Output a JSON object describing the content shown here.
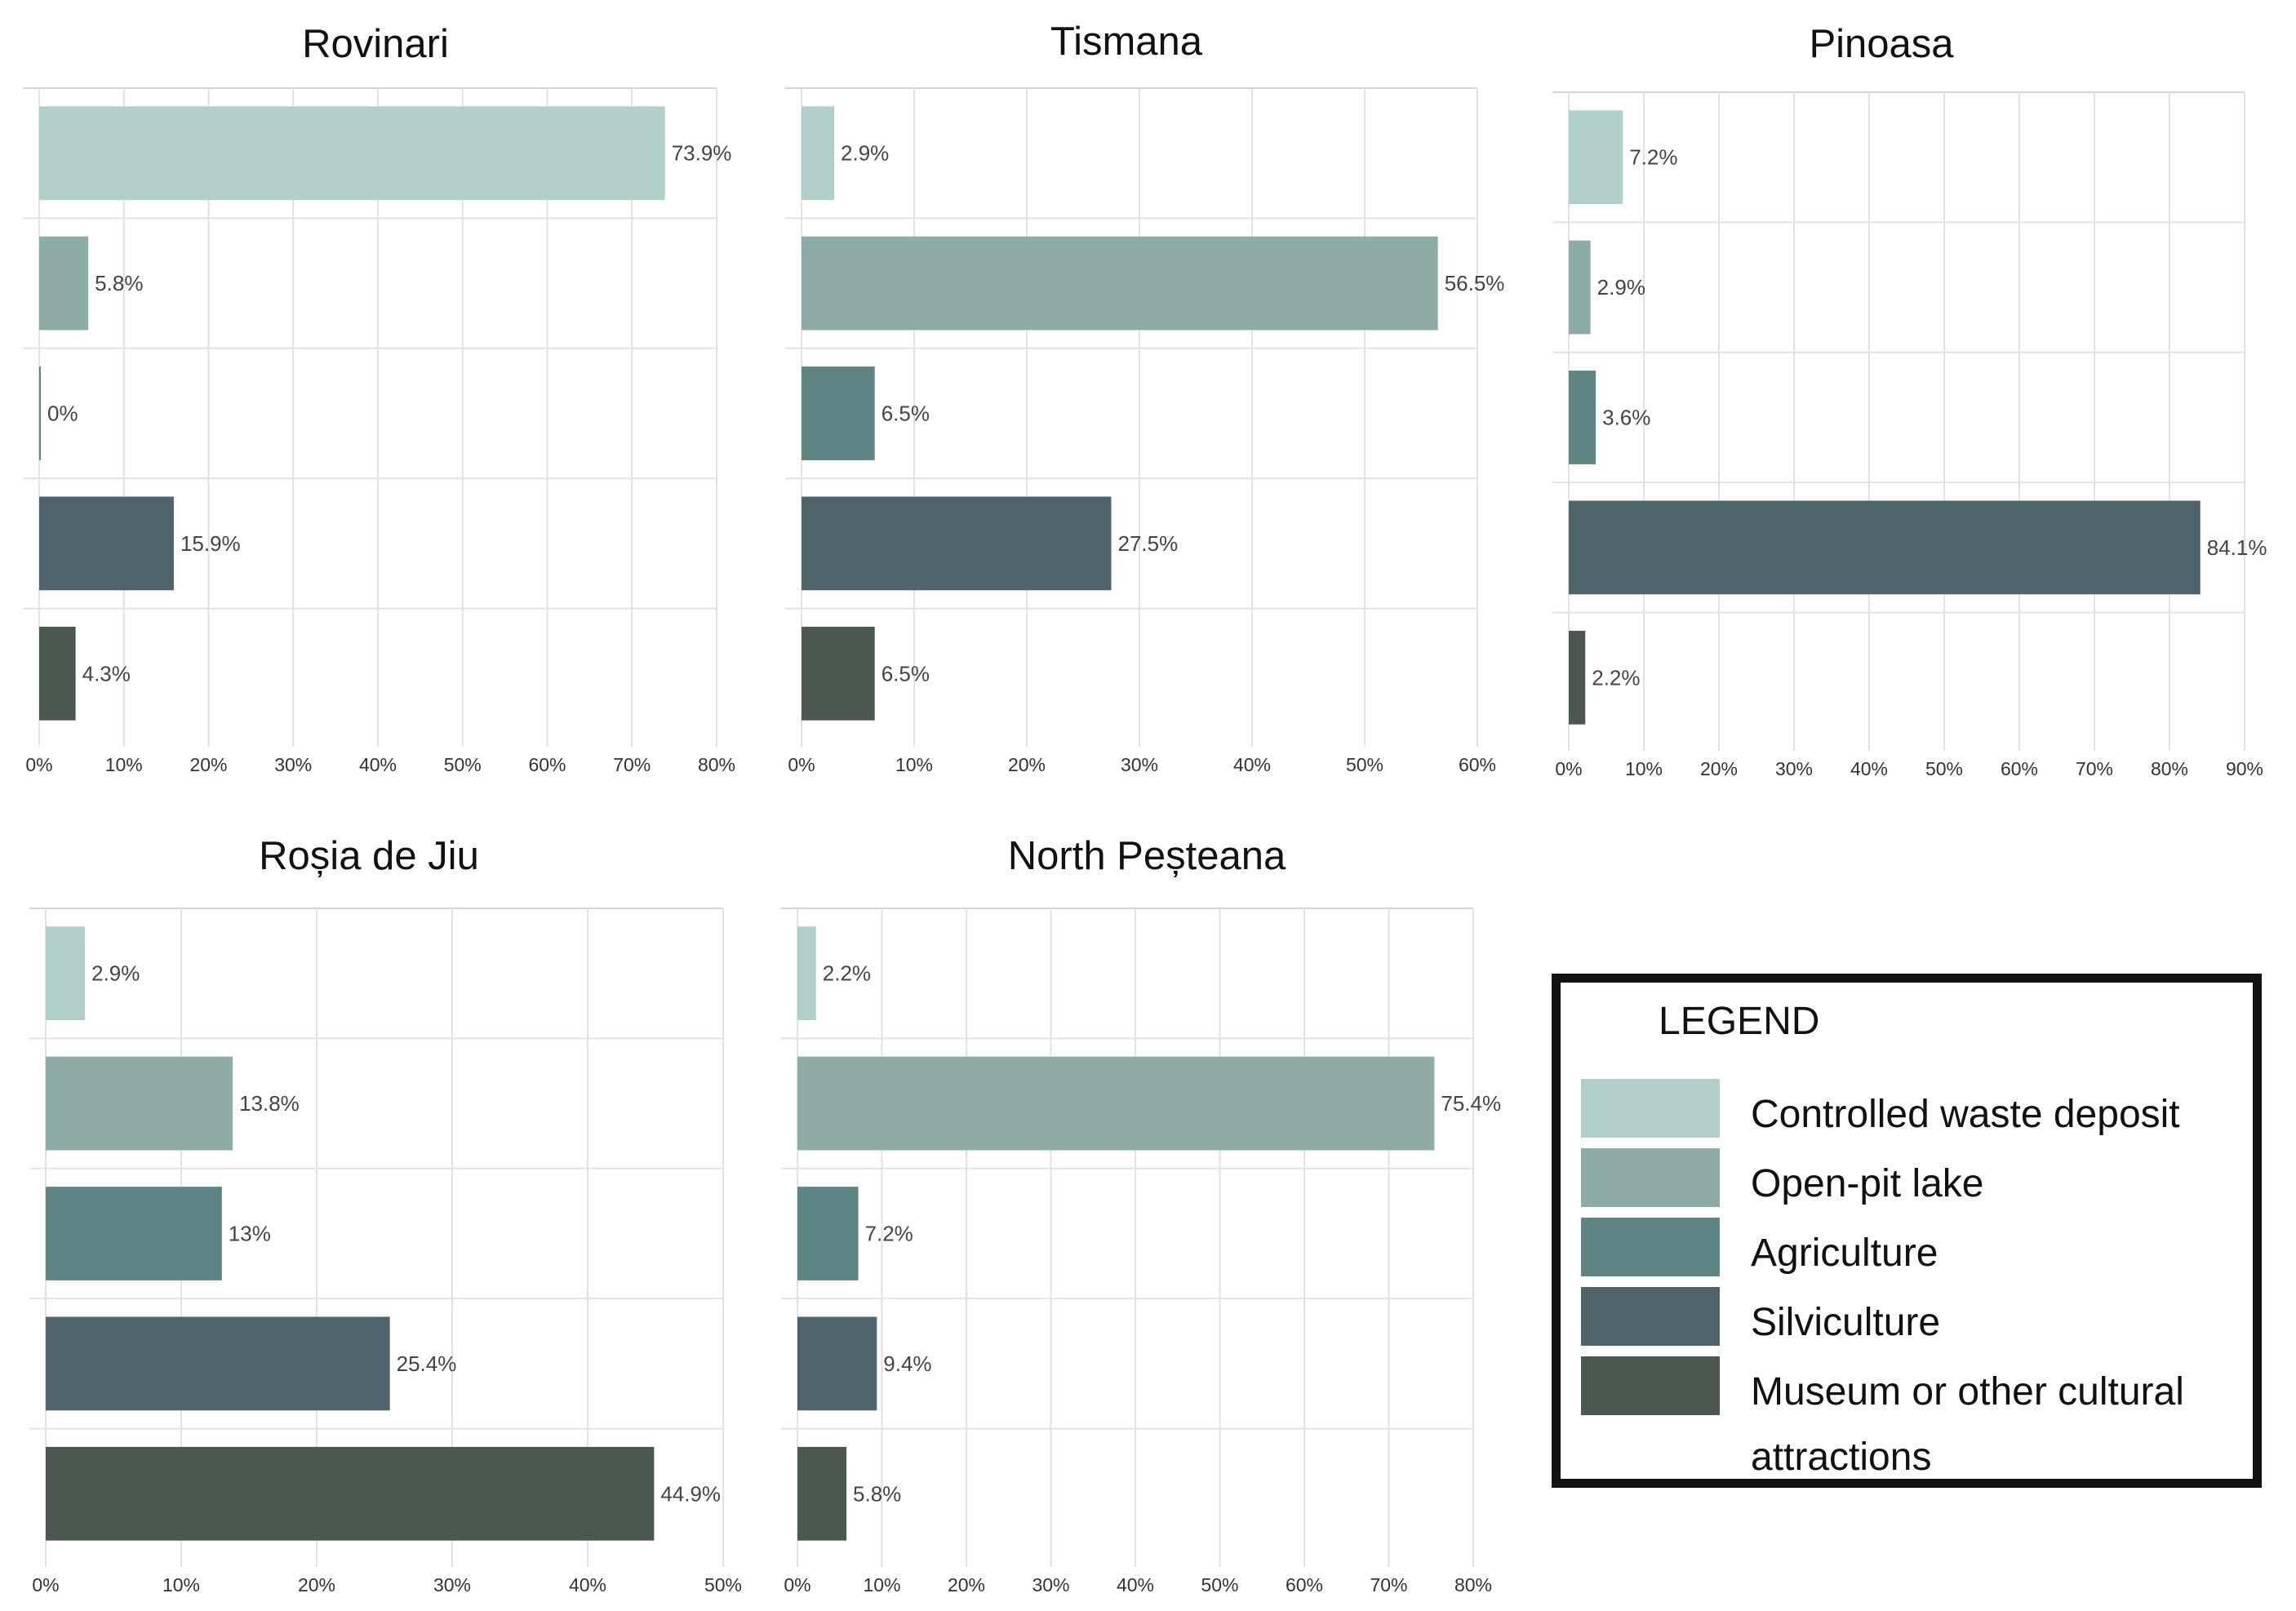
{
  "legend": {
    "title": "LEGEND",
    "items": [
      {
        "label": "Controlled waste deposit",
        "color": "#b0cfcb"
      },
      {
        "label": "Open-pit lake",
        "color": "#8eaca7"
      },
      {
        "label": "Agriculture",
        "color": "#5e8483"
      },
      {
        "label": "Silviculture",
        "color": "#4f636c"
      },
      {
        "label": "Museum or other cultural attractions",
        "color": "#4c574f"
      }
    ]
  },
  "chart_data": [
    {
      "type": "bar",
      "orientation": "horizontal",
      "title": "Rovinari",
      "categories": [
        "Controlled waste deposit",
        "Open-pit lake",
        "Agriculture",
        "Silviculture",
        "Museum or other cultural attractions"
      ],
      "values": [
        73.9,
        5.8,
        0,
        15.9,
        4.3
      ],
      "labels": [
        "73.9%",
        "5.8%",
        "0%",
        "15.9%",
        "4.3%"
      ],
      "xlim": [
        0,
        80
      ],
      "ticks": [
        "0%",
        "10%",
        "20%",
        "30%",
        "40%",
        "50%",
        "60%",
        "70%",
        "80%"
      ],
      "grid": true
    },
    {
      "type": "bar",
      "orientation": "horizontal",
      "title": "Tismana",
      "categories": [
        "Controlled waste deposit",
        "Open-pit lake",
        "Agriculture",
        "Silviculture",
        "Museum or other cultural attractions"
      ],
      "values": [
        2.9,
        56.5,
        6.5,
        27.5,
        6.5
      ],
      "labels": [
        "2.9%",
        "56.5%",
        "6.5%",
        "27.5%",
        "6.5%"
      ],
      "xlim": [
        0,
        60
      ],
      "ticks": [
        "0%",
        "10%",
        "20%",
        "30%",
        "40%",
        "50%",
        "60%"
      ],
      "grid": true
    },
    {
      "type": "bar",
      "orientation": "horizontal",
      "title": "Pinoasa",
      "categories": [
        "Controlled waste deposit",
        "Open-pit lake",
        "Agriculture",
        "Silviculture",
        "Museum or other cultural attractions"
      ],
      "values": [
        7.2,
        2.9,
        3.6,
        84.1,
        2.2
      ],
      "labels": [
        "7.2%",
        "2.9%",
        "3.6%",
        "84.1%",
        "2.2%"
      ],
      "xlim": [
        0,
        90
      ],
      "ticks": [
        "0%",
        "10%",
        "20%",
        "30%",
        "40%",
        "50%",
        "60%",
        "70%",
        "80%",
        "90%"
      ],
      "grid": true
    },
    {
      "type": "bar",
      "orientation": "horizontal",
      "title": "Roșia de Jiu",
      "categories": [
        "Controlled waste deposit",
        "Open-pit lake",
        "Agriculture",
        "Silviculture",
        "Museum or other cultural attractions"
      ],
      "values": [
        2.9,
        13.8,
        13,
        25.4,
        44.9
      ],
      "labels": [
        "2.9%",
        "13.8%",
        "13%",
        "25.4%",
        "44.9%"
      ],
      "xlim": [
        0,
        50
      ],
      "ticks": [
        "0%",
        "10%",
        "20%",
        "30%",
        "40%",
        "50%"
      ],
      "grid": true
    },
    {
      "type": "bar",
      "orientation": "horizontal",
      "title": "North Peșteana",
      "categories": [
        "Controlled waste deposit",
        "Open-pit lake",
        "Agriculture",
        "Silviculture",
        "Museum or other cultural attractions"
      ],
      "values": [
        2.2,
        75.4,
        7.2,
        9.4,
        5.8
      ],
      "labels": [
        "2.2%",
        "75.4%",
        "7.2%",
        "9.4%",
        "5.8%"
      ],
      "xlim": [
        0,
        80
      ],
      "ticks": [
        "0%",
        "10%",
        "20%",
        "30%",
        "40%",
        "50%",
        "60%",
        "70%",
        "80%"
      ],
      "grid": true
    }
  ]
}
